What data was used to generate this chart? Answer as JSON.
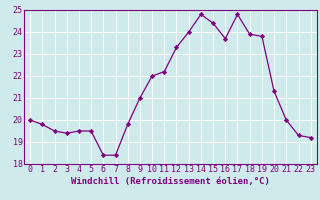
{
  "hours": [
    0,
    1,
    2,
    3,
    4,
    5,
    6,
    7,
    8,
    9,
    10,
    11,
    12,
    13,
    14,
    15,
    16,
    17,
    18,
    19,
    20,
    21,
    22,
    23
  ],
  "values": [
    20.0,
    19.8,
    19.5,
    19.4,
    19.5,
    19.5,
    18.4,
    18.4,
    19.8,
    21.0,
    22.0,
    22.2,
    23.3,
    24.0,
    24.8,
    24.4,
    23.7,
    24.8,
    23.9,
    23.8,
    21.3,
    20.0,
    19.3,
    19.2
  ],
  "line_color": "#800080",
  "marker": "D",
  "marker_size": 2.2,
  "bg_color": "#ceeaea",
  "grid_color": "#ffffff",
  "xlabel": "Windchill (Refroidissement éolien,°C)",
  "ylim": [
    18,
    25
  ],
  "xlim_min": -0.5,
  "xlim_max": 23.5,
  "yticks": [
    18,
    19,
    20,
    21,
    22,
    23,
    24,
    25
  ],
  "xticks": [
    0,
    1,
    2,
    3,
    4,
    5,
    6,
    7,
    8,
    9,
    10,
    11,
    12,
    13,
    14,
    15,
    16,
    17,
    18,
    19,
    20,
    21,
    22,
    23
  ],
  "label_fontsize": 6.5,
  "tick_fontsize": 6.0
}
